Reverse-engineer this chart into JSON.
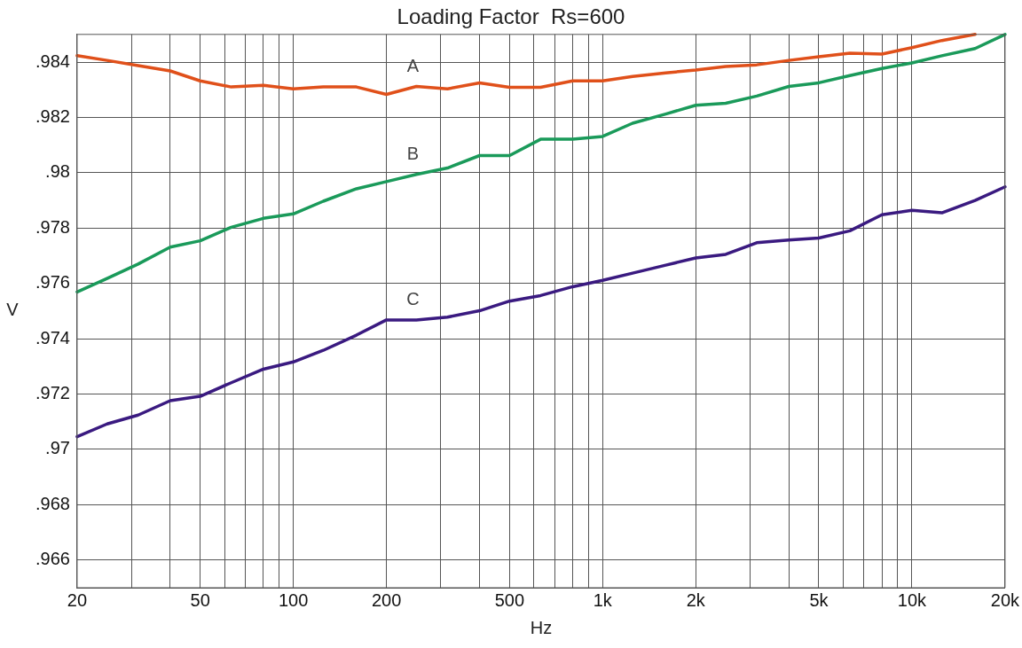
{
  "chart_data": {
    "type": "line",
    "title": "Loading Factor  Rs=600",
    "xlabel": "Hz",
    "ylabel": "V",
    "log": "x",
    "x": [
      20,
      25,
      31.5,
      40,
      50,
      63,
      80,
      100,
      125,
      160,
      200,
      250,
      315,
      400,
      500,
      630,
      800,
      1000,
      1250,
      1600,
      2000,
      2500,
      3150,
      4000,
      5000,
      6300,
      8000,
      10000,
      12500,
      16000,
      20000
    ],
    "series": [
      {
        "name": "A",
        "color": "#e0501a",
        "values": [
          0.98423,
          0.98406,
          0.98387,
          0.98368,
          0.98332,
          0.9831,
          0.98316,
          0.98303,
          0.9831,
          0.9831,
          0.98283,
          0.98312,
          0.98303,
          0.98325,
          0.98309,
          0.98309,
          0.98332,
          0.98332,
          0.98348,
          0.98361,
          0.98371,
          0.98384,
          0.9839,
          0.98406,
          0.98419,
          0.98432,
          0.98429,
          0.98452,
          0.98478,
          0.985,
          null
        ]
      },
      {
        "name": "B",
        "color": "#1a9a5a",
        "values": [
          0.97569,
          0.97618,
          0.9767,
          0.97731,
          0.97754,
          0.97803,
          0.97835,
          0.97851,
          0.97897,
          0.97942,
          0.97968,
          0.97994,
          0.98017,
          0.98062,
          0.98062,
          0.98121,
          0.98121,
          0.98131,
          0.98179,
          0.98212,
          0.98244,
          0.98251,
          0.98277,
          0.98312,
          0.98325,
          0.98351,
          0.98377,
          0.98397,
          0.98423,
          0.98449,
          0.985
        ]
      },
      {
        "name": "C",
        "color": "#3a1a80",
        "values": [
          0.97046,
          0.97092,
          0.97124,
          0.97176,
          0.97192,
          0.97241,
          0.9729,
          0.97316,
          0.97358,
          0.97413,
          0.97468,
          0.97468,
          0.97478,
          0.97501,
          0.97536,
          0.97556,
          0.97588,
          0.97611,
          0.97637,
          0.97666,
          0.97692,
          0.97705,
          0.97747,
          0.97757,
          0.97764,
          0.9779,
          0.97848,
          0.97864,
          0.97855,
          0.979,
          0.97949
        ]
      }
    ],
    "xlim": [
      20,
      20000
    ],
    "xticks": [
      20,
      {
        "value": 30,
        "label": null
      },
      {
        "value": 40,
        "label": null
      },
      50,
      {
        "value": 60,
        "label": null
      },
      {
        "value": 70,
        "label": null
      },
      {
        "value": 80,
        "label": null
      },
      {
        "value": 90,
        "label": null
      },
      100,
      200,
      {
        "value": 300,
        "label": null
      },
      {
        "value": 400,
        "label": null
      },
      500,
      {
        "value": 600,
        "label": null
      },
      {
        "value": 700,
        "label": null
      },
      {
        "value": 800,
        "label": null
      },
      {
        "value": 900,
        "label": null
      },
      {
        "value": 1000,
        "label": "1k"
      },
      {
        "value": 2000,
        "label": "2k"
      },
      {
        "value": 3000,
        "label": null
      },
      {
        "value": 4000,
        "label": null
      },
      {
        "value": 5000,
        "label": "5k"
      },
      {
        "value": 6000,
        "label": null
      },
      {
        "value": 7000,
        "label": null
      },
      {
        "value": 8000,
        "label": null
      },
      {
        "value": 9000,
        "label": null
      },
      {
        "value": 10000,
        "label": "10k"
      },
      {
        "value": 20000,
        "label": "20k"
      }
    ],
    "ylim": [
      0.965,
      0.985
    ],
    "yticks": [
      {
        "value": 0.966,
        "label": ".966"
      },
      {
        "value": 0.968,
        "label": ".968"
      },
      {
        "value": 0.97,
        "label": ".97"
      },
      {
        "value": 0.972,
        "label": ".972"
      },
      {
        "value": 0.974,
        "label": ".974"
      },
      {
        "value": 0.976,
        "label": ".976"
      },
      {
        "value": 0.978,
        "label": ".978"
      },
      {
        "value": 0.98,
        "label": ".98"
      },
      {
        "value": 0.982,
        "label": ".982"
      },
      {
        "value": 0.984,
        "label": ".984"
      }
    ],
    "grid": true,
    "legend": false,
    "marker": "none",
    "line_style": "solid"
  }
}
